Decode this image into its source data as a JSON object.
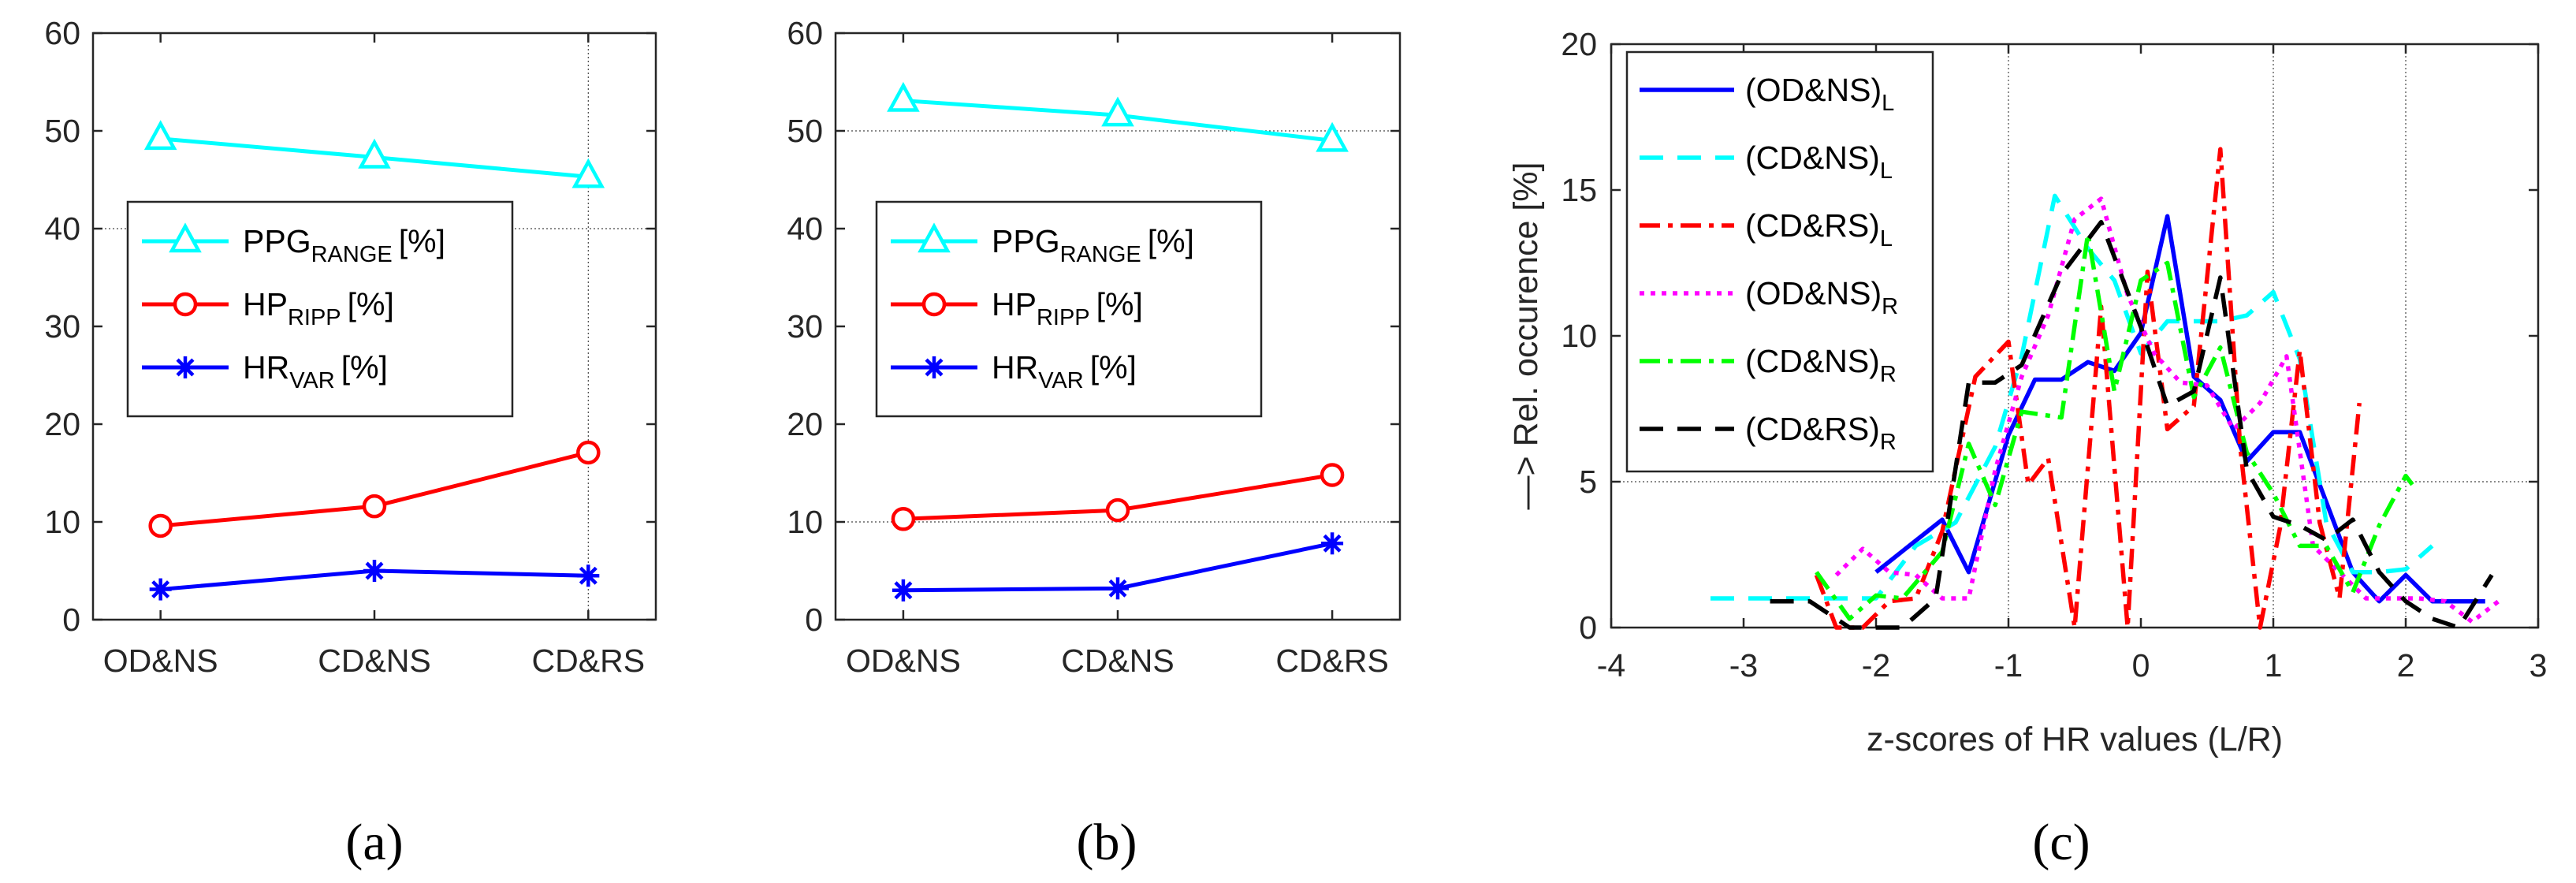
{
  "colors": {
    "ppg": "#00ffff",
    "hp": "#ff0000",
    "hr": "#0000ff",
    "axis": "#262626",
    "magenta": "#ff00ff",
    "green": "#00ff00",
    "black": "#000000"
  },
  "chart_data": [
    {
      "type": "line",
      "panel_label": "(a)",
      "categories": [
        "OD&NS",
        "CD&NS",
        "CD&RS"
      ],
      "ylim": [
        0,
        60
      ],
      "yticks": [
        "0",
        "10",
        "20",
        "30",
        "40",
        "50",
        "60"
      ],
      "grid": "x at CD&RS, y at 40",
      "legend_position": "middle-left",
      "series": [
        {
          "name": "PPG",
          "subscript": "RANGE",
          "unit": "[%]",
          "marker": "triangle",
          "color": "#00ffff",
          "values": [
            49.2,
            47.3,
            45.3
          ]
        },
        {
          "name": "HP",
          "subscript": "RIPP",
          "unit": "[%]",
          "marker": "circle",
          "color": "#ff0000",
          "values": [
            9.6,
            11.6,
            17.1
          ]
        },
        {
          "name": "HR",
          "subscript": "VAR",
          "unit": "[%]",
          "marker": "star",
          "color": "#0000ff",
          "values": [
            3.1,
            5.0,
            4.5
          ]
        }
      ]
    },
    {
      "type": "line",
      "panel_label": "(b)",
      "categories": [
        "OD&NS",
        "CD&NS",
        "CD&RS"
      ],
      "ylim": [
        0,
        60
      ],
      "yticks": [
        "0",
        "10",
        "20",
        "30",
        "40",
        "50",
        "60"
      ],
      "grid": "y at 10 and 50",
      "legend_position": "middle-left",
      "series": [
        {
          "name": "PPG",
          "subscript": "RANGE",
          "unit": "[%]",
          "marker": "triangle",
          "color": "#00ffff",
          "values": [
            53.1,
            51.6,
            49.0
          ]
        },
        {
          "name": "HP",
          "subscript": "RIPP",
          "unit": "[%]",
          "marker": "circle",
          "color": "#ff0000",
          "values": [
            10.3,
            11.2,
            14.8
          ]
        },
        {
          "name": "HR",
          "subscript": "VAR",
          "unit": "[%]",
          "marker": "star",
          "color": "#0000ff",
          "values": [
            3.0,
            3.2,
            7.8
          ]
        }
      ]
    },
    {
      "type": "line",
      "panel_label": "(c)",
      "xlabel": "z-scores of HR values (L/R)",
      "ylabel": "—> Rel. occurence [%]",
      "xlim": [
        -4,
        3
      ],
      "ylim": [
        0,
        20
      ],
      "xticks": [
        "-4",
        "-3",
        "-2",
        "-1",
        "0",
        "1",
        "2",
        "3"
      ],
      "yticks": [
        "0",
        "5",
        "10",
        "15",
        "20"
      ],
      "grid": "x at -1, 1, 2; y at 5",
      "legend_position": "top-left",
      "series": [
        {
          "name": "(OD&NS)",
          "subscript": "L",
          "style": "solid",
          "color": "#0000ff",
          "x": [
            -2.0,
            -1.5,
            -1.3,
            -1.0,
            -0.8,
            -0.6,
            -0.4,
            -0.2,
            0.0,
            0.2,
            0.4,
            0.6,
            0.8,
            1.0,
            1.2,
            1.4,
            1.6,
            1.8,
            2.0,
            2.2,
            2.4,
            2.6
          ],
          "y": [
            1.9,
            3.7,
            1.9,
            6.6,
            8.5,
            8.5,
            9.1,
            8.8,
            10.1,
            14.1,
            8.6,
            7.8,
            5.7,
            6.7,
            6.7,
            4.3,
            1.9,
            0.9,
            1.8,
            0.9,
            0.9,
            0.9
          ]
        },
        {
          "name": "(CD&NS)",
          "subscript": "L",
          "style": "dashed",
          "color": "#00ffff",
          "x": [
            -3.25,
            -2.9,
            -2.6,
            -2.3,
            -2.0,
            -1.7,
            -1.4,
            -1.1,
            -0.9,
            -0.65,
            -0.4,
            -0.2,
            0.0,
            0.2,
            0.4,
            0.6,
            0.8,
            1.0,
            1.2,
            1.4,
            1.6,
            1.8,
            2.0,
            2.2
          ],
          "y": [
            1.0,
            1.0,
            1.0,
            1.0,
            1.0,
            2.8,
            3.6,
            6.2,
            9.3,
            14.8,
            13.0,
            11.9,
            9.4,
            10.5,
            10.5,
            10.5,
            10.7,
            11.5,
            9.2,
            3.6,
            1.9,
            1.9,
            2.0,
            2.8
          ]
        },
        {
          "name": "(CD&RS)",
          "subscript": "L",
          "style": "dashdot",
          "color": "#ff0000",
          "x": [
            -2.45,
            -2.3,
            -2.1,
            -1.9,
            -1.7,
            -1.5,
            -1.25,
            -1.0,
            -0.85,
            -0.7,
            -0.5,
            -0.3,
            -0.1,
            0.05,
            0.2,
            0.4,
            0.6,
            0.75,
            0.9,
            1.05,
            1.2,
            1.35,
            1.5,
            1.65
          ],
          "y": [
            1.8,
            0.0,
            0.0,
            0.9,
            1.0,
            3.3,
            8.6,
            9.8,
            4.9,
            5.8,
            0.0,
            11.0,
            0.0,
            12.2,
            6.8,
            7.6,
            16.4,
            6.2,
            0.0,
            3.4,
            9.5,
            3.6,
            1.0,
            7.7
          ]
        },
        {
          "name": "(OD&NS)",
          "subscript": "R",
          "style": "dotted",
          "color": "#ff00ff",
          "x": [
            -2.3,
            -2.1,
            -1.9,
            -1.7,
            -1.5,
            -1.3,
            -1.1,
            -0.9,
            -0.7,
            -0.5,
            -0.3,
            -0.1,
            0.1,
            0.3,
            0.5,
            0.7,
            0.9,
            1.1,
            1.3,
            1.5,
            1.7,
            1.9,
            2.1,
            2.3,
            2.5,
            2.7
          ],
          "y": [
            1.8,
            2.7,
            1.9,
            1.8,
            1.0,
            1.0,
            5.4,
            8.6,
            10.7,
            14.0,
            14.7,
            11.4,
            9.4,
            8.4,
            8.3,
            6.8,
            7.7,
            9.3,
            2.8,
            1.9,
            1.0,
            1.0,
            1.0,
            0.9,
            0.2,
            0.9
          ]
        },
        {
          "name": "(CD&NS)",
          "subscript": "R",
          "style": "dashdot",
          "color": "#00ff00",
          "x": [
            -2.45,
            -2.2,
            -2.0,
            -1.8,
            -1.5,
            -1.3,
            -1.1,
            -0.9,
            -0.6,
            -0.4,
            -0.2,
            0.0,
            0.2,
            0.4,
            0.6,
            0.8,
            1.0,
            1.2,
            1.4,
            1.6,
            1.8,
            2.0,
            2.05
          ],
          "y": [
            1.9,
            0.3,
            1.1,
            1.0,
            2.6,
            6.3,
            4.2,
            7.4,
            7.2,
            13.5,
            8.1,
            11.9,
            12.5,
            7.9,
            9.6,
            6.0,
            4.6,
            2.8,
            2.8,
            1.2,
            3.5,
            5.2,
            4.9
          ]
        },
        {
          "name": "(CD&RS)",
          "subscript": "R",
          "style": "dashed",
          "color": "#000000",
          "x": [
            -2.8,
            -2.5,
            -2.2,
            -2.0,
            -1.8,
            -1.55,
            -1.3,
            -1.1,
            -0.9,
            -0.6,
            -0.3,
            0.0,
            0.2,
            0.4,
            0.6,
            0.8,
            1.0,
            1.2,
            1.4,
            1.6,
            1.8,
            2.0,
            2.2,
            2.4,
            2.65
          ],
          "y": [
            0.9,
            0.9,
            0.0,
            0.0,
            0.0,
            1.0,
            8.4,
            8.4,
            9.0,
            12.1,
            13.9,
            10.3,
            7.6,
            8.1,
            12.0,
            5.4,
            3.8,
            3.5,
            3.0,
            3.7,
            1.9,
            0.9,
            0.3,
            0.0,
            1.8
          ]
        }
      ]
    }
  ]
}
